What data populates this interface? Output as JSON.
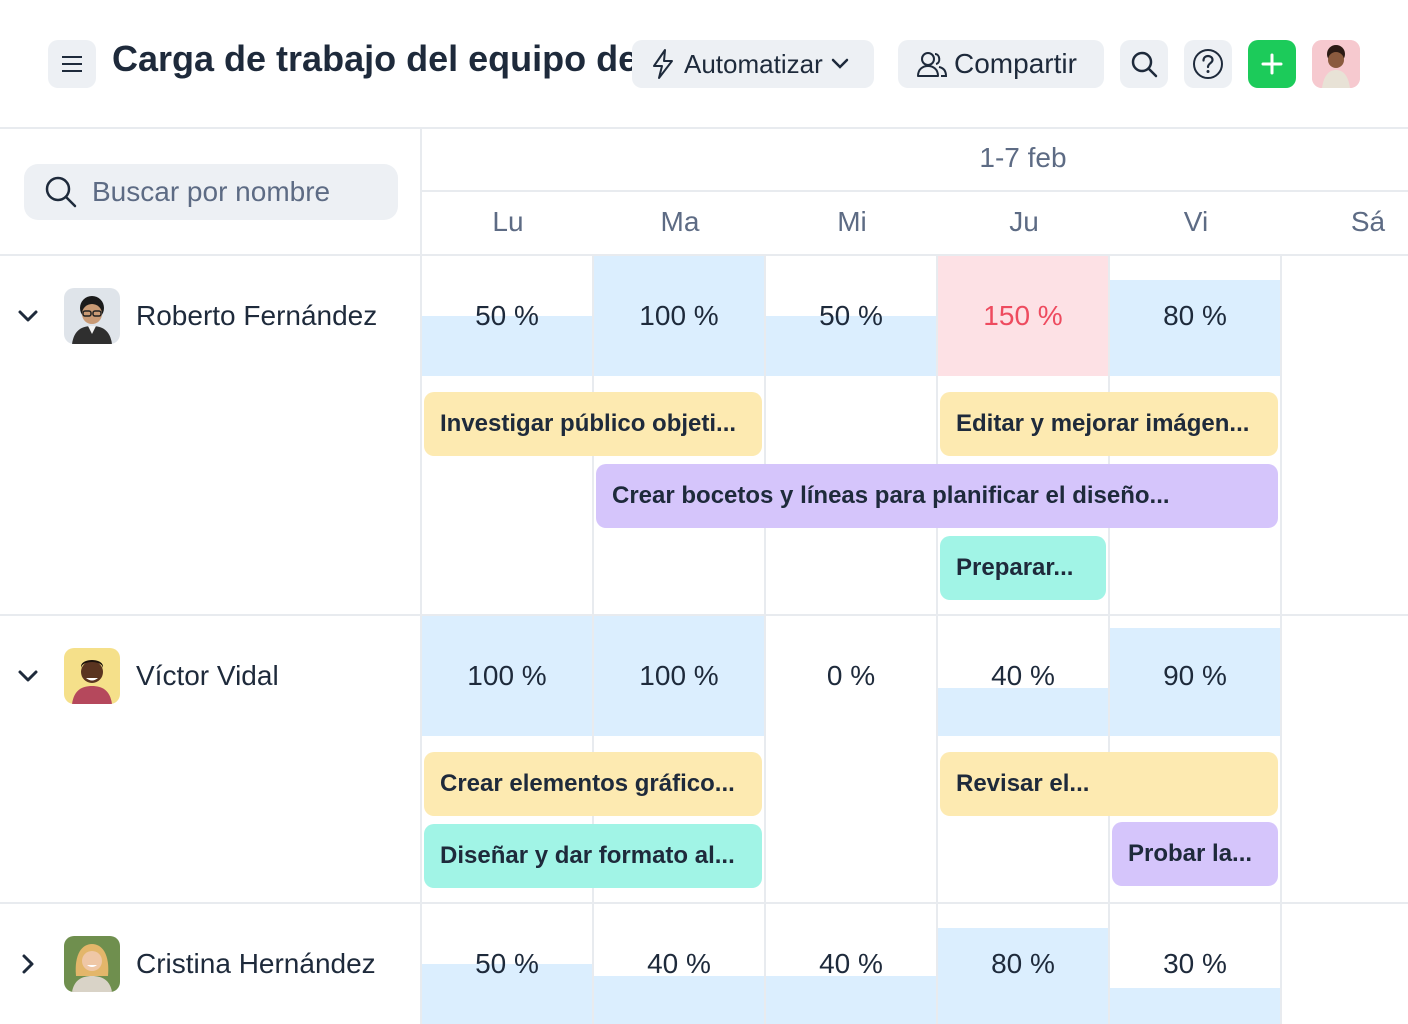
{
  "header": {
    "title": "Carga de trabajo del equipo del proyecto",
    "automation_label": "Automatizar",
    "share_label": "Compartir"
  },
  "search": {
    "placeholder": "Buscar por nombre"
  },
  "timeline": {
    "period": "1-7 feb",
    "days": [
      "Lu",
      "Ma",
      "Mi",
      "Ju",
      "Vi",
      "Sá"
    ]
  },
  "colors": {
    "load_normal": "#dbeefe",
    "load_over": "#fde1e5",
    "over_text": "#ee4b5f",
    "task_yellow": "#fdeab1",
    "task_purple": "#d5c5fb",
    "task_teal": "#a1f4e6",
    "add_button": "#1ccb5a"
  },
  "people": [
    {
      "name": "Roberto Fernández",
      "expanded": true,
      "loads": [
        {
          "label": "50 %",
          "value": 50
        },
        {
          "label": "100 %",
          "value": 100
        },
        {
          "label": "50 %",
          "value": 50
        },
        {
          "label": "150 %",
          "value": 150
        },
        {
          "label": "80 %",
          "value": 80
        }
      ],
      "tasks": [
        {
          "label": "Investigar público objeti...",
          "color": "yellow"
        },
        {
          "label": "Editar y mejorar imágen...",
          "color": "yellow"
        },
        {
          "label": "Crear bocetos y líneas para planificar el diseño...",
          "color": "purple"
        },
        {
          "label": "Preparar...",
          "color": "teal"
        }
      ]
    },
    {
      "name": "Víctor Vidal",
      "expanded": true,
      "loads": [
        {
          "label": "100 %",
          "value": 100
        },
        {
          "label": "100 %",
          "value": 100
        },
        {
          "label": "0 %",
          "value": 0
        },
        {
          "label": "40 %",
          "value": 40
        },
        {
          "label": "90 %",
          "value": 90
        }
      ],
      "tasks": [
        {
          "label": "Crear elementos gráfico...",
          "color": "yellow"
        },
        {
          "label": "Revisar el...",
          "color": "yellow"
        },
        {
          "label": "Diseñar y dar formato al...",
          "color": "teal"
        },
        {
          "label": "Probar la...",
          "color": "purple"
        }
      ]
    },
    {
      "name": "Cristina Hernández",
      "expanded": false,
      "loads": [
        {
          "label": "50 %",
          "value": 50
        },
        {
          "label": "40 %",
          "value": 40
        },
        {
          "label": "40 %",
          "value": 40
        },
        {
          "label": "80 %",
          "value": 80
        },
        {
          "label": "30 %",
          "value": 30
        }
      ],
      "tasks": []
    }
  ]
}
